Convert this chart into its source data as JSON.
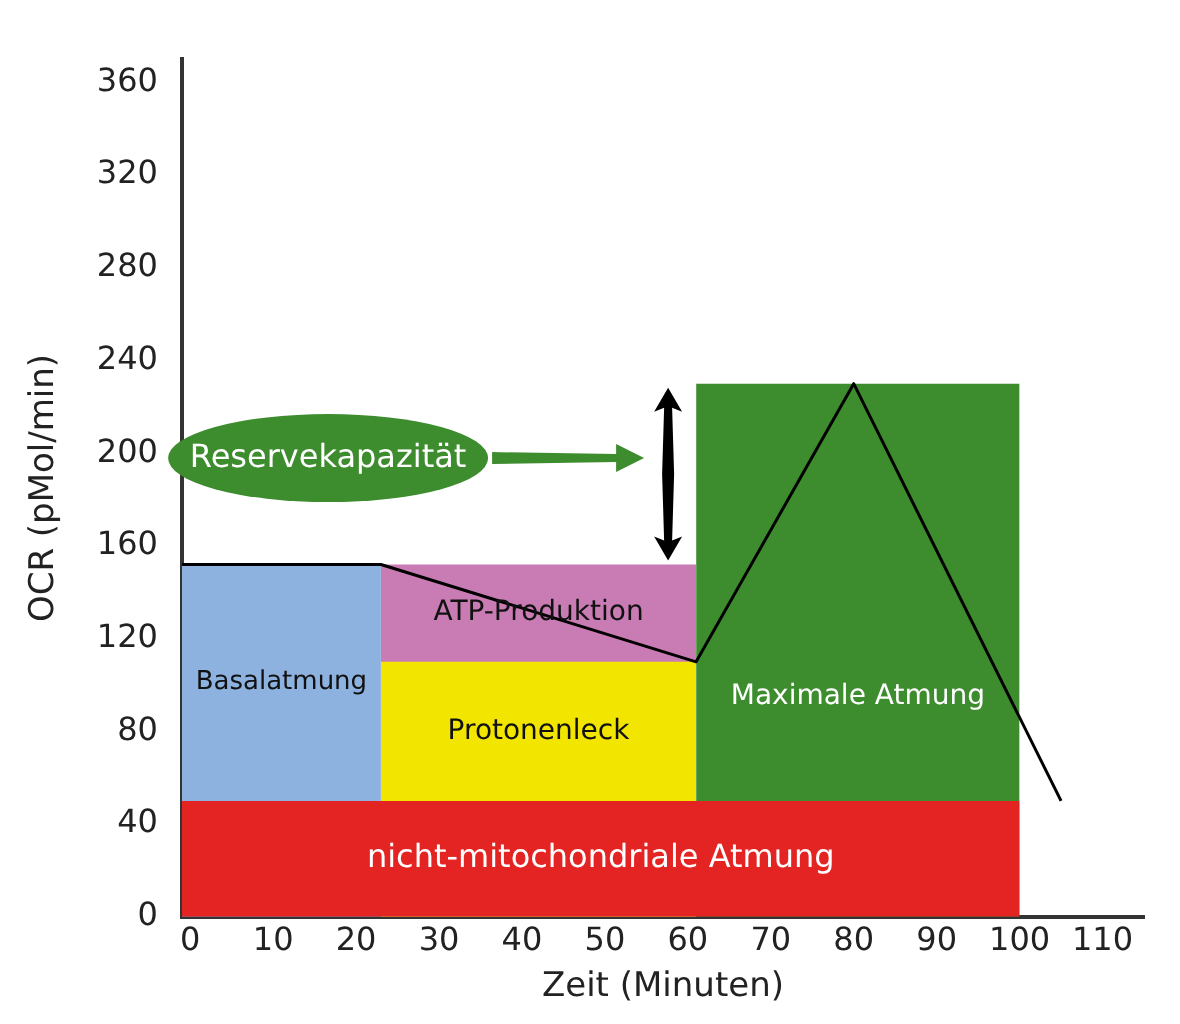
{
  "chart_data": {
    "type": "area",
    "xlabel": "Zeit (Minuten)",
    "ylabel": "OCR (pMol/min)",
    "xlim": [
      -1,
      115
    ],
    "xticks": [
      0,
      10,
      20,
      30,
      40,
      50,
      60,
      70,
      80,
      90,
      100,
      110
    ],
    "ylim": [
      0,
      370
    ],
    "yticks": [
      0,
      40,
      80,
      120,
      160,
      200,
      240,
      280,
      320,
      360
    ],
    "series": [
      {
        "name": "Maximale Atmung",
        "color": "#3d8c2e",
        "x": [
          61,
          100
        ],
        "values": [
          230,
          230
        ]
      },
      {
        "name": "Basalatmung",
        "color": "#8db2e0",
        "x": [
          -1,
          23
        ],
        "values": [
          152,
          152
        ]
      },
      {
        "name": "ATP-Produktion",
        "color": "#c97bb3",
        "x": [
          23,
          61
        ],
        "values": [
          152,
          152
        ]
      },
      {
        "name": "Protonenleck",
        "color": "#f2e500",
        "x": [
          23,
          61
        ],
        "values": [
          110,
          110
        ]
      },
      {
        "name": "nicht-mitochondriale Atmung",
        "color": "#e32422",
        "x": [
          -1,
          100
        ],
        "values": [
          50,
          50
        ]
      },
      {
        "type": "line",
        "color": "#000000",
        "x": [
          -1,
          23,
          61,
          80,
          105
        ],
        "values": [
          152,
          152,
          110,
          230,
          50
        ]
      }
    ],
    "annotations": [
      "Reservekapazität"
    ]
  }
}
